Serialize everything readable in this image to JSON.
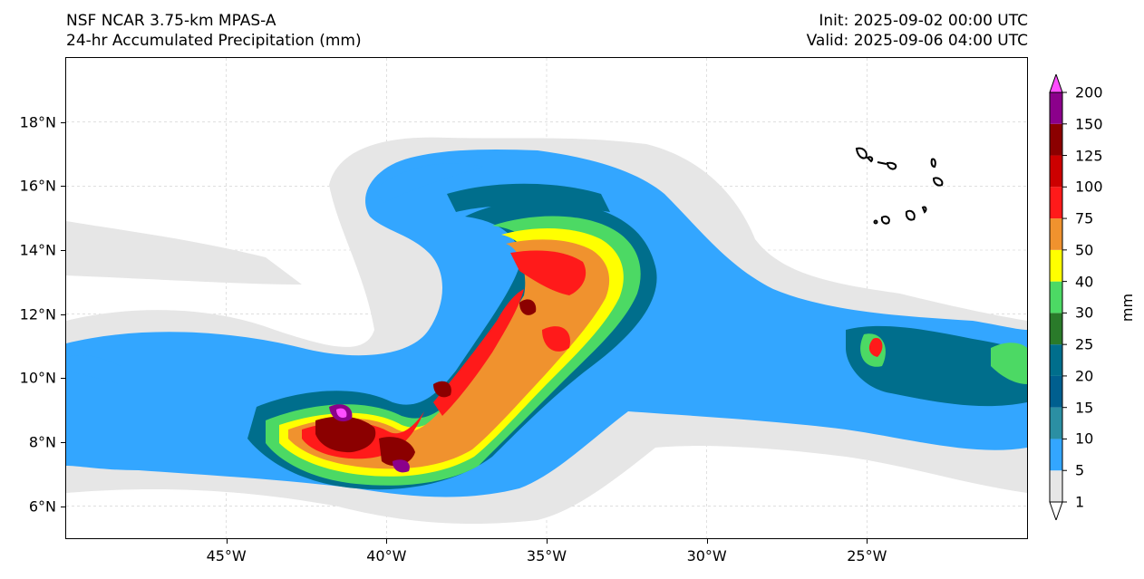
{
  "header": {
    "model": "NSF NCAR 3.75-km MPAS-A",
    "field": "24-hr Accumulated Precipitation (mm)",
    "init": "Init: 2025-09-02 00:00 UTC",
    "valid": "Valid: 2025-09-06 04:00 UTC"
  },
  "map": {
    "lon_range": [
      -50,
      -20
    ],
    "lat_range": [
      5,
      20
    ],
    "lat_ticks": [
      {
        "value": 6,
        "label": "6°N"
      },
      {
        "value": 8,
        "label": "8°N"
      },
      {
        "value": 10,
        "label": "10°N"
      },
      {
        "value": 12,
        "label": "12°N"
      },
      {
        "value": 14,
        "label": "14°N"
      },
      {
        "value": 16,
        "label": "16°N"
      },
      {
        "value": 18,
        "label": "18°N"
      }
    ],
    "lon_ticks": [
      {
        "value": -45,
        "label": "45°W"
      },
      {
        "value": -40,
        "label": "40°W"
      },
      {
        "value": -35,
        "label": "35°W"
      },
      {
        "value": -30,
        "label": "30°W"
      },
      {
        "value": -25,
        "label": "25°W"
      }
    ]
  },
  "colorbar": {
    "units": "mm",
    "levels": [
      "1",
      "5",
      "10",
      "15",
      "20",
      "25",
      "30",
      "40",
      "50",
      "75",
      "100",
      "125",
      "150",
      "200"
    ],
    "colors": [
      "#e6e6e6",
      "#33a6ff",
      "#2b8fa3",
      "#005f8f",
      "#006e8c",
      "#2a7a2a",
      "#4cd964",
      "#ffff00",
      "#f0922e",
      "#ff1a1a",
      "#cc0000",
      "#8b0000",
      "#8b008b",
      "#ff4dff"
    ]
  }
}
